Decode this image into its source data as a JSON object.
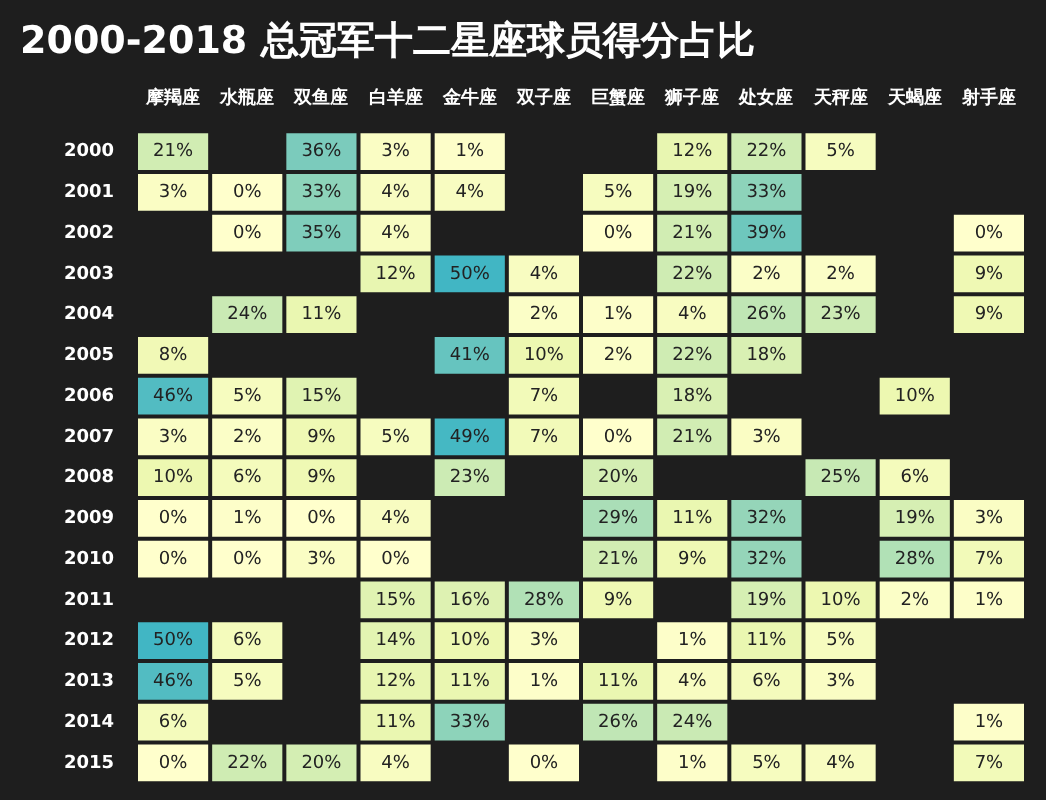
{
  "chart_data": {
    "type": "heatmap",
    "title": "2000-2018 总冠军十二星座球员得分占比",
    "categories": [
      "摩羯座",
      "水瓶座",
      "双鱼座",
      "白羊座",
      "金牛座",
      "双子座",
      "巨蟹座",
      "狮子座",
      "处女座",
      "天秤座",
      "天蝎座",
      "射手座"
    ],
    "y_categories": [
      "2000",
      "2001",
      "2002",
      "2003",
      "2004",
      "2005",
      "2006",
      "2007",
      "2008",
      "2009",
      "2010",
      "2011",
      "2012",
      "2013",
      "2014",
      "2015"
    ],
    "cells": [
      [
        21,
        null,
        36,
        3,
        1,
        null,
        null,
        12,
        22,
        5,
        null,
        null
      ],
      [
        3,
        0,
        33,
        4,
        4,
        null,
        5,
        19,
        33,
        null,
        null,
        null
      ],
      [
        null,
        0,
        35,
        4,
        null,
        null,
        0,
        21,
        39,
        null,
        null,
        0
      ],
      [
        null,
        null,
        null,
        12,
        50,
        4,
        null,
        22,
        2,
        2,
        null,
        9
      ],
      [
        null,
        24,
        11,
        null,
        null,
        2,
        1,
        4,
        26,
        23,
        null,
        9
      ],
      [
        8,
        null,
        null,
        null,
        41,
        10,
        2,
        22,
        18,
        null,
        null,
        null
      ],
      [
        46,
        5,
        15,
        null,
        null,
        7,
        null,
        18,
        null,
        null,
        10,
        null
      ],
      [
        3,
        2,
        9,
        5,
        49,
        7,
        0,
        21,
        3,
        null,
        null,
        null
      ],
      [
        10,
        6,
        9,
        null,
        23,
        null,
        20,
        null,
        null,
        25,
        6,
        null
      ],
      [
        0,
        1,
        0,
        4,
        null,
        null,
        29,
        11,
        32,
        null,
        19,
        3
      ],
      [
        0,
        0,
        3,
        0,
        null,
        null,
        21,
        9,
        32,
        null,
        28,
        7
      ],
      [
        null,
        null,
        null,
        15,
        16,
        28,
        9,
        null,
        19,
        10,
        2,
        1
      ],
      [
        50,
        6,
        null,
        14,
        10,
        3,
        null,
        1,
        11,
        5,
        null,
        null
      ],
      [
        46,
        5,
        null,
        12,
        11,
        1,
        11,
        4,
        6,
        3,
        null,
        null
      ],
      [
        6,
        null,
        null,
        11,
        33,
        null,
        26,
        24,
        null,
        null,
        null,
        1
      ],
      [
        0,
        22,
        20,
        4,
        null,
        0,
        null,
        1,
        5,
        4,
        null,
        7
      ]
    ],
    "cell_labels": [
      [
        "21%",
        null,
        "36%",
        "3%",
        "1%",
        null,
        null,
        "12%",
        "22%",
        "5%",
        null,
        null
      ],
      [
        "3%",
        "0%",
        "33%",
        "4%",
        "4%",
        null,
        "5%",
        "19%",
        "33%",
        null,
        null,
        null
      ],
      [
        null,
        "0%",
        "35%",
        "4%",
        null,
        null,
        "0%",
        "21%",
        "39%",
        null,
        null,
        "0%"
      ],
      [
        null,
        null,
        null,
        "12%",
        "50%",
        "4%",
        null,
        "22%",
        "2%",
        "2%",
        null,
        "9%"
      ],
      [
        null,
        "24%",
        "11%",
        null,
        null,
        "2%",
        "1%",
        "4%",
        "26%",
        "23%",
        null,
        "9%"
      ],
      [
        "8%",
        null,
        null,
        null,
        "41%",
        "10%",
        "2%",
        "22%",
        "18%",
        null,
        null,
        null
      ],
      [
        "46%",
        "5%",
        "15%",
        null,
        null,
        "7%",
        null,
        "18%",
        null,
        null,
        "10%",
        null
      ],
      [
        "3%",
        "2%",
        "9%",
        "5%",
        "49%",
        "7%",
        "0%",
        "21%",
        "3%",
        null,
        null,
        null
      ],
      [
        "10%",
        "6%",
        "9%",
        null,
        "23%",
        null,
        "20%",
        null,
        null,
        "25%",
        "6%",
        null
      ],
      [
        "0%",
        "1%",
        "0%",
        "4%",
        null,
        null,
        "29%",
        "11%",
        "32%",
        null,
        "19%",
        "3%"
      ],
      [
        "0%",
        "0%",
        "3%",
        "0%",
        null,
        null,
        "21%",
        "9%",
        "32%",
        null,
        "28%",
        "7%"
      ],
      [
        null,
        null,
        null,
        "15%",
        "16%",
        "28%",
        "9%",
        null,
        "19%",
        "10%",
        "2%",
        "1%"
      ],
      [
        "50%",
        "6%",
        null,
        "14%",
        "10%",
        "3%",
        null,
        "1%",
        "11%",
        "5%",
        null,
        null
      ],
      [
        "46%",
        "5%",
        null,
        "12%",
        "11%",
        "1%",
        "11%",
        "4%",
        "6%",
        "3%",
        null,
        null
      ],
      [
        "6%",
        null,
        null,
        "11%",
        "33%",
        null,
        "26%",
        "24%",
        null,
        null,
        null,
        "1%"
      ],
      [
        "0%",
        "22%",
        "20%",
        "4%",
        null,
        "0%",
        null,
        "1%",
        "5%",
        "4%",
        null,
        "7%"
      ]
    ]
  }
}
